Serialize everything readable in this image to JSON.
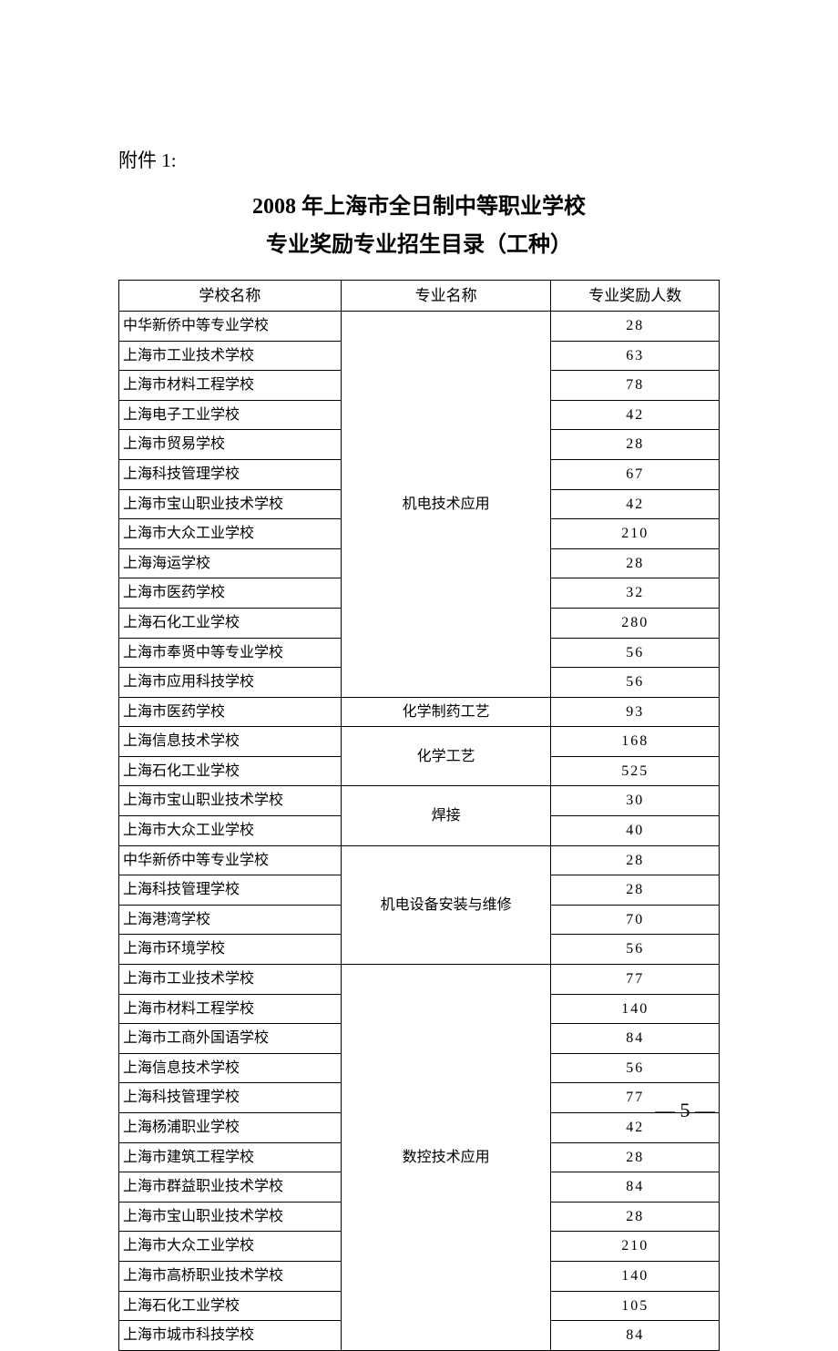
{
  "attachment_label": "附件 1:",
  "title_line1": "2008 年上海市全日制中等职业学校",
  "title_line2": "专业奖励专业招生目录（工种）",
  "table": {
    "headers": {
      "school": "学校名称",
      "major": "专业名称",
      "count": "专业奖励人数"
    },
    "groups": [
      {
        "major": "机电技术应用",
        "rows": [
          {
            "school": "中华新侨中等专业学校",
            "count": "28"
          },
          {
            "school": "上海市工业技术学校",
            "count": "63"
          },
          {
            "school": "上海市材料工程学校",
            "count": "78"
          },
          {
            "school": "上海电子工业学校",
            "count": "42"
          },
          {
            "school": "上海市贸易学校",
            "count": "28"
          },
          {
            "school": "上海科技管理学校",
            "count": "67"
          },
          {
            "school": "上海市宝山职业技术学校",
            "count": "42"
          },
          {
            "school": "上海市大众工业学校",
            "count": "210"
          },
          {
            "school": "上海海运学校",
            "count": "28"
          },
          {
            "school": "上海市医药学校",
            "count": "32"
          },
          {
            "school": "上海石化工业学校",
            "count": "280"
          },
          {
            "school": "上海市奉贤中等专业学校",
            "count": "56"
          },
          {
            "school": "上海市应用科技学校",
            "count": "56"
          }
        ]
      },
      {
        "major": "化学制药工艺",
        "rows": [
          {
            "school": "上海市医药学校",
            "count": "93"
          }
        ]
      },
      {
        "major": "化学工艺",
        "rows": [
          {
            "school": "上海信息技术学校",
            "count": "168"
          },
          {
            "school": "上海石化工业学校",
            "count": "525"
          }
        ]
      },
      {
        "major": "焊接",
        "rows": [
          {
            "school": "上海市宝山职业技术学校",
            "count": "30"
          },
          {
            "school": "上海市大众工业学校",
            "count": "40"
          }
        ]
      },
      {
        "major": "机电设备安装与维修",
        "rows": [
          {
            "school": "中华新侨中等专业学校",
            "count": "28"
          },
          {
            "school": "上海科技管理学校",
            "count": "28"
          },
          {
            "school": "上海港湾学校",
            "count": "70"
          },
          {
            "school": "上海市环境学校",
            "count": "56"
          }
        ]
      },
      {
        "major": "数控技术应用",
        "rows": [
          {
            "school": "上海市工业技术学校",
            "count": "77"
          },
          {
            "school": "上海市材料工程学校",
            "count": "140"
          },
          {
            "school": "上海市工商外国语学校",
            "count": "84"
          },
          {
            "school": "上海信息技术学校",
            "count": "56"
          },
          {
            "school": "上海科技管理学校",
            "count": "77"
          },
          {
            "school": "上海杨浦职业学校",
            "count": "42"
          },
          {
            "school": "上海市建筑工程学校",
            "count": "28"
          },
          {
            "school": "上海市群益职业技术学校",
            "count": "84"
          },
          {
            "school": "上海市宝山职业技术学校",
            "count": "28"
          },
          {
            "school": "上海市大众工业学校",
            "count": "210"
          },
          {
            "school": "上海市高桥职业技术学校",
            "count": "140"
          },
          {
            "school": "上海石化工业学校",
            "count": "105"
          },
          {
            "school": "上海市城市科技学校",
            "count": "84"
          }
        ]
      }
    ]
  },
  "page_number": "— 5 —",
  "colors": {
    "text": "#000000",
    "border": "#000000",
    "background": "#ffffff"
  }
}
